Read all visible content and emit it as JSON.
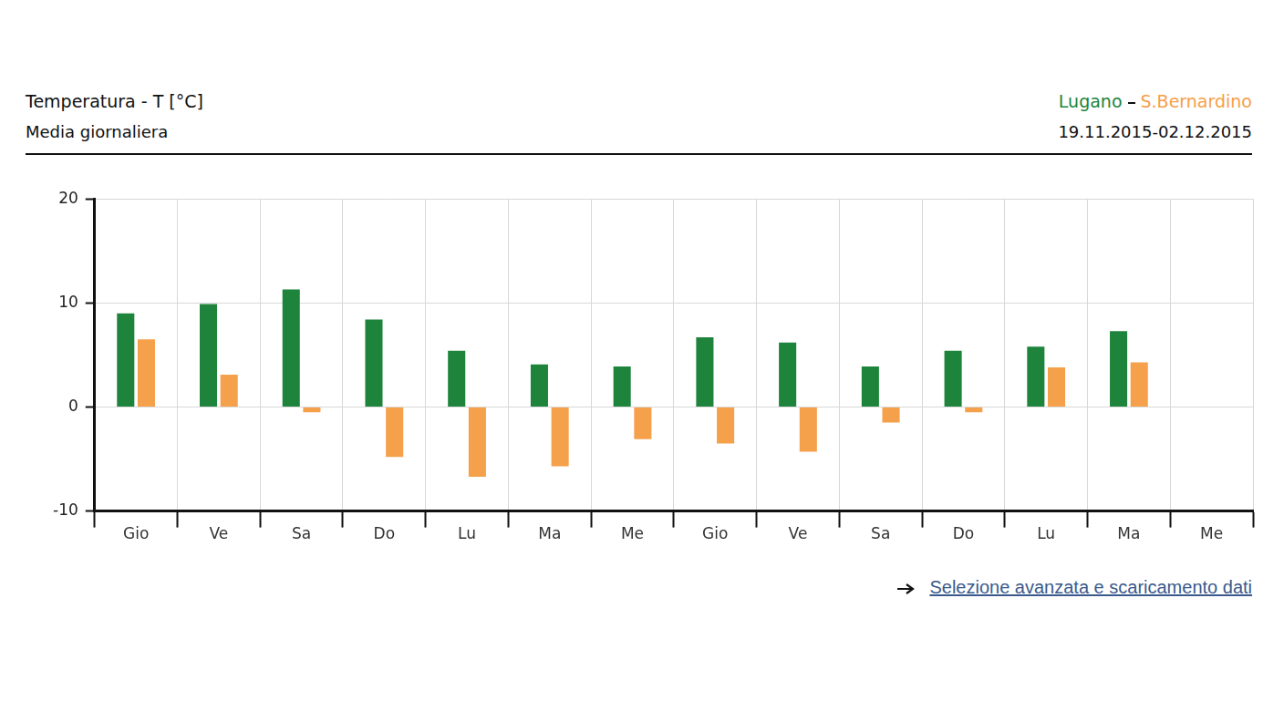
{
  "chart_data": {
    "type": "bar",
    "title": "Temperatura - T [°C]",
    "subtitle": "Media giornaliera",
    "annotations": [
      "19.11.2015-02.12.2015",
      "Selezione avanzata e scaricamento dati"
    ],
    "categories": [
      "Gio",
      "Ve",
      "Sa",
      "Do",
      "Lu",
      "Ma",
      "Me",
      "Gio",
      "Ve",
      "Sa",
      "Do",
      "Lu",
      "Ma",
      "Me"
    ],
    "series": [
      {
        "name": "Lugano",
        "color": "#1e843c",
        "values": [
          9.0,
          9.9,
          11.3,
          8.4,
          5.4,
          4.1,
          3.9,
          6.7,
          6.2,
          3.9,
          5.4,
          5.8,
          7.3,
          null
        ]
      },
      {
        "name": "S.Bernardino",
        "color": "#f5a04a",
        "values": [
          6.5,
          3.1,
          -0.5,
          -4.8,
          -6.7,
          -5.7,
          -3.1,
          -3.5,
          -4.3,
          -1.5,
          -0.5,
          3.8,
          4.3,
          null
        ]
      }
    ],
    "ylim": [
      -10,
      20
    ],
    "yticks": [
      -10,
      0,
      10,
      20
    ],
    "grid": true,
    "legend": "upper right"
  }
}
